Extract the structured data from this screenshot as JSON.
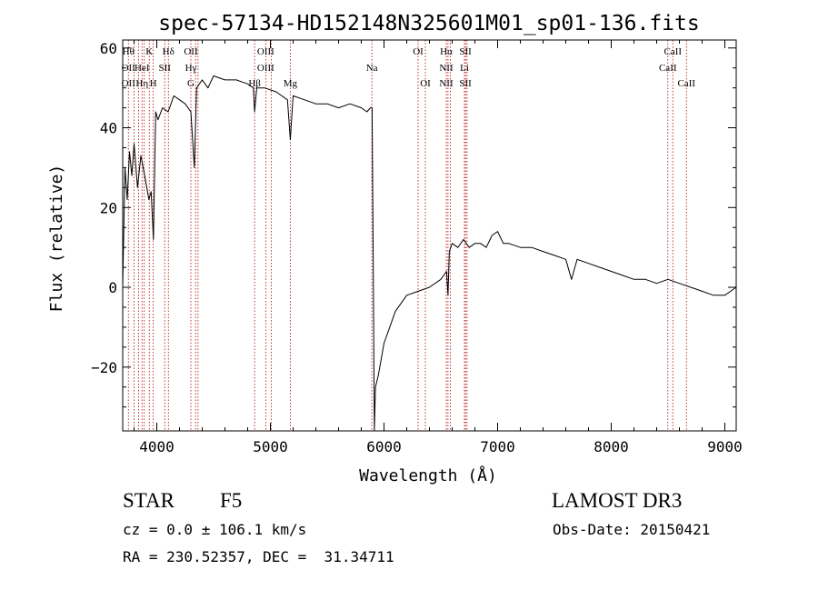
{
  "chart_data": {
    "type": "line",
    "title": "spec-57134-HD152148N325601M01_sp01-136.fits",
    "xlabel": "Wavelength (Å)",
    "ylabel": "Flux (relative)",
    "xlim": [
      3700,
      9100
    ],
    "ylim": [
      -36,
      62
    ],
    "xticks": [
      4000,
      5000,
      6000,
      7000,
      8000,
      9000
    ],
    "yticks": [
      -20,
      0,
      20,
      40,
      60
    ],
    "grid": false,
    "series": [
      {
        "name": "spectrum",
        "x": [
          3700,
          3720,
          3740,
          3760,
          3780,
          3800,
          3830,
          3860,
          3880,
          3900,
          3930,
          3950,
          3970,
          3990,
          4010,
          4050,
          4100,
          4150,
          4200,
          4250,
          4300,
          4330,
          4350,
          4400,
          4450,
          4500,
          4600,
          4700,
          4800,
          4850,
          4861,
          4880,
          4950,
          5050,
          5150,
          5175,
          5200,
          5300,
          5400,
          5500,
          5600,
          5700,
          5800,
          5850,
          5880,
          5895,
          5905,
          5915,
          5925,
          5950,
          6000,
          6050,
          6100,
          6150,
          6200,
          6300,
          6400,
          6500,
          6550,
          6563,
          6575,
          6600,
          6650,
          6700,
          6750,
          6800,
          6850,
          6900,
          6950,
          7000,
          7050,
          7100,
          7200,
          7300,
          7400,
          7500,
          7600,
          7650,
          7700,
          7800,
          7900,
          8000,
          8100,
          8200,
          8300,
          8400,
          8500,
          8600,
          8700,
          8800,
          8900,
          9000,
          9050,
          9100
        ],
        "y": [
          0,
          30,
          22,
          34,
          28,
          36,
          25,
          33,
          30,
          27,
          22,
          24,
          12,
          44,
          42,
          45,
          44,
          48,
          47,
          46,
          44,
          30,
          50,
          52,
          50,
          53,
          52,
          52,
          51,
          50,
          44,
          50,
          50,
          49,
          47,
          37,
          48,
          47,
          46,
          46,
          45,
          46,
          45,
          44,
          45,
          45,
          8,
          -36,
          -25,
          -22,
          -14,
          -10,
          -6,
          -4,
          -2,
          -1,
          0,
          2,
          4,
          -2,
          9,
          11,
          10,
          12,
          10,
          11,
          11,
          10,
          13,
          14,
          11,
          11,
          10,
          10,
          9,
          8,
          7,
          2,
          7,
          6,
          5,
          4,
          3,
          2,
          2,
          1,
          2,
          1,
          0,
          -1,
          -2,
          -2,
          -1,
          0
        ]
      }
    ],
    "lines": [
      {
        "x": 3750,
        "top": "Hθ",
        "mid": "OII",
        "low": "OII"
      },
      {
        "x": 3800,
        "top": "",
        "mid": "",
        "low": ""
      },
      {
        "x": 3840,
        "top": "",
        "mid": "",
        "low": ""
      },
      {
        "x": 3870,
        "top": "",
        "mid": "HeI",
        "low": "Hη"
      },
      {
        "x": 3890,
        "top": "",
        "mid": "",
        "low": ""
      },
      {
        "x": 3934,
        "top": "K",
        "mid": "",
        "low": ""
      },
      {
        "x": 3969,
        "top": "",
        "mid": "",
        "low": "H"
      },
      {
        "x": 4070,
        "top": "",
        "mid": "SII",
        "low": ""
      },
      {
        "x": 4102,
        "top": "Hδ",
        "mid": "",
        "low": ""
      },
      {
        "x": 4300,
        "top": "OII",
        "mid": "Hγ",
        "low": "G"
      },
      {
        "x": 4341,
        "top": "",
        "mid": "",
        "low": ""
      },
      {
        "x": 4363,
        "top": "",
        "mid": "",
        "low": ""
      },
      {
        "x": 4861,
        "top": "",
        "mid": "",
        "low": "Hβ"
      },
      {
        "x": 4959,
        "top": "OIII",
        "mid": "OIII",
        "low": ""
      },
      {
        "x": 5007,
        "top": "",
        "mid": "",
        "low": ""
      },
      {
        "x": 5175,
        "top": "",
        "mid": "",
        "low": "Mg"
      },
      {
        "x": 5893,
        "top": "",
        "mid": "Na",
        "low": ""
      },
      {
        "x": 6300,
        "top": "OI",
        "mid": "",
        "low": ""
      },
      {
        "x": 6364,
        "top": "",
        "mid": "",
        "low": "OI"
      },
      {
        "x": 6548,
        "top": "Hα",
        "mid": "NII",
        "low": "NII"
      },
      {
        "x": 6563,
        "top": "",
        "mid": "",
        "low": ""
      },
      {
        "x": 6583,
        "top": "",
        "mid": "",
        "low": ""
      },
      {
        "x": 6708,
        "top": "",
        "mid": "Li",
        "low": ""
      },
      {
        "x": 6717,
        "top": "SII",
        "mid": "",
        "low": "SII"
      },
      {
        "x": 6731,
        "top": "",
        "mid": "",
        "low": ""
      },
      {
        "x": 8498,
        "top": "",
        "mid": "CaII",
        "low": ""
      },
      {
        "x": 8542,
        "top": "CaII",
        "mid": "",
        "low": ""
      },
      {
        "x": 8662,
        "top": "",
        "mid": "",
        "low": "CaII"
      }
    ]
  },
  "info": {
    "object_type": "STAR",
    "subclass": "F5",
    "survey": "LAMOST DR3",
    "redshift": "cz = 0.0 ± 106.1 km/s",
    "obs_date": "Obs-Date: 20150421",
    "coords": "RA = 230.52357, DEC =  31.34711"
  },
  "colors": {
    "spectrum": "#000000",
    "lines": "#b00000",
    "axis": "#000000"
  }
}
